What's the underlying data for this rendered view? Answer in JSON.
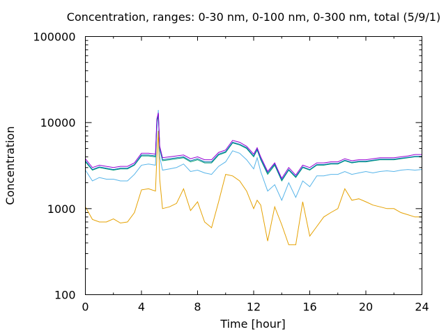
{
  "chart_data": {
    "type": "line",
    "title": "Concentration, ranges: 0-30 nm, 0-100 nm, 0-300 nm, total (5/9/1)",
    "xlabel": "Time [hour]",
    "ylabel": "Concentration",
    "x_scale": "linear",
    "y_scale": "log",
    "xlim": [
      0,
      24
    ],
    "ylim": [
      100,
      100000
    ],
    "x_ticks": [
      "0",
      "4",
      "8",
      "12",
      "16",
      "20",
      "24"
    ],
    "y_ticks": [
      "100",
      "1000",
      "10000",
      "100000"
    ],
    "grid": false,
    "legend": "none",
    "x": [
      0,
      0.5,
      1,
      1.5,
      2,
      2.5,
      3,
      3.5,
      4,
      4.5,
      5,
      5.1,
      5.2,
      5.3,
      5.5,
      6,
      6.5,
      7,
      7.5,
      8,
      8.5,
      9,
      9.5,
      10,
      10.5,
      11,
      11.5,
      12,
      12.25,
      12.5,
      13,
      13.5,
      14,
      14.5,
      15,
      15.5,
      16,
      16.5,
      17,
      17.5,
      18,
      18.5,
      19,
      19.5,
      20,
      20.5,
      21,
      21.5,
      22,
      22.5,
      23,
      23.5,
      24
    ],
    "series": [
      {
        "color": "#e5a100",
        "values": [
          1050,
          750,
          700,
          700,
          760,
          680,
          700,
          900,
          1650,
          1700,
          1600,
          4000,
          8000,
          2200,
          1000,
          1050,
          1150,
          1700,
          950,
          1200,
          700,
          600,
          1200,
          2500,
          2400,
          2100,
          1600,
          1000,
          1250,
          1100,
          420,
          1050,
          650,
          380,
          380,
          1200,
          480,
          620,
          800,
          900,
          1000,
          1700,
          1250,
          1300,
          1200,
          1100,
          1050,
          1000,
          1000,
          900,
          850,
          800,
          800
        ]
      },
      {
        "color": "#56b4e9",
        "values": [
          2800,
          2100,
          2300,
          2200,
          2200,
          2100,
          2100,
          2500,
          3200,
          3300,
          3200,
          8500,
          14000,
          4000,
          2800,
          2900,
          3000,
          3300,
          2700,
          2800,
          2600,
          2500,
          3100,
          3500,
          4700,
          4400,
          3700,
          2900,
          3900,
          2700,
          1600,
          1900,
          1250,
          2000,
          1350,
          2100,
          1800,
          2400,
          2400,
          2500,
          2500,
          2700,
          2500,
          2600,
          2700,
          2600,
          2700,
          2750,
          2700,
          2800,
          2850,
          2800,
          2850
        ]
      },
      {
        "color": "#009e73",
        "values": [
          3500,
          2800,
          3000,
          2900,
          2800,
          2900,
          2900,
          3200,
          4100,
          4100,
          4000,
          10000,
          12000,
          5000,
          3600,
          3700,
          3800,
          3900,
          3500,
          3700,
          3400,
          3400,
          4200,
          4500,
          5800,
          5500,
          5000,
          4000,
          4800,
          3700,
          2500,
          3200,
          2100,
          2800,
          2300,
          3000,
          2800,
          3200,
          3200,
          3300,
          3300,
          3600,
          3400,
          3500,
          3500,
          3600,
          3700,
          3700,
          3700,
          3800,
          3900,
          4000,
          4000
        ]
      },
      {
        "color": "#0072b2",
        "values": [
          3600,
          2850,
          3050,
          2950,
          2850,
          2950,
          2950,
          3250,
          4200,
          4200,
          4100,
          10500,
          12500,
          5100,
          3700,
          3800,
          3900,
          4000,
          3600,
          3800,
          3500,
          3500,
          4300,
          4600,
          5900,
          5600,
          5100,
          4100,
          4900,
          3800,
          2600,
          3300,
          2150,
          2850,
          2350,
          3050,
          2850,
          3250,
          3250,
          3350,
          3350,
          3650,
          3450,
          3550,
          3550,
          3650,
          3750,
          3750,
          3750,
          3850,
          3950,
          4050,
          4050
        ]
      },
      {
        "color": "#9400d3",
        "values": [
          3800,
          3000,
          3200,
          3100,
          3000,
          3100,
          3100,
          3400,
          4400,
          4400,
          4300,
          11000,
          13000,
          5300,
          3900,
          4000,
          4100,
          4200,
          3800,
          4000,
          3700,
          3700,
          4500,
          4800,
          6200,
          5900,
          5300,
          4300,
          5100,
          4000,
          2700,
          3400,
          2250,
          3000,
          2450,
          3200,
          3000,
          3400,
          3400,
          3500,
          3500,
          3800,
          3600,
          3700,
          3700,
          3800,
          3900,
          3900,
          3900,
          4000,
          4100,
          4250,
          4250
        ]
      }
    ]
  }
}
